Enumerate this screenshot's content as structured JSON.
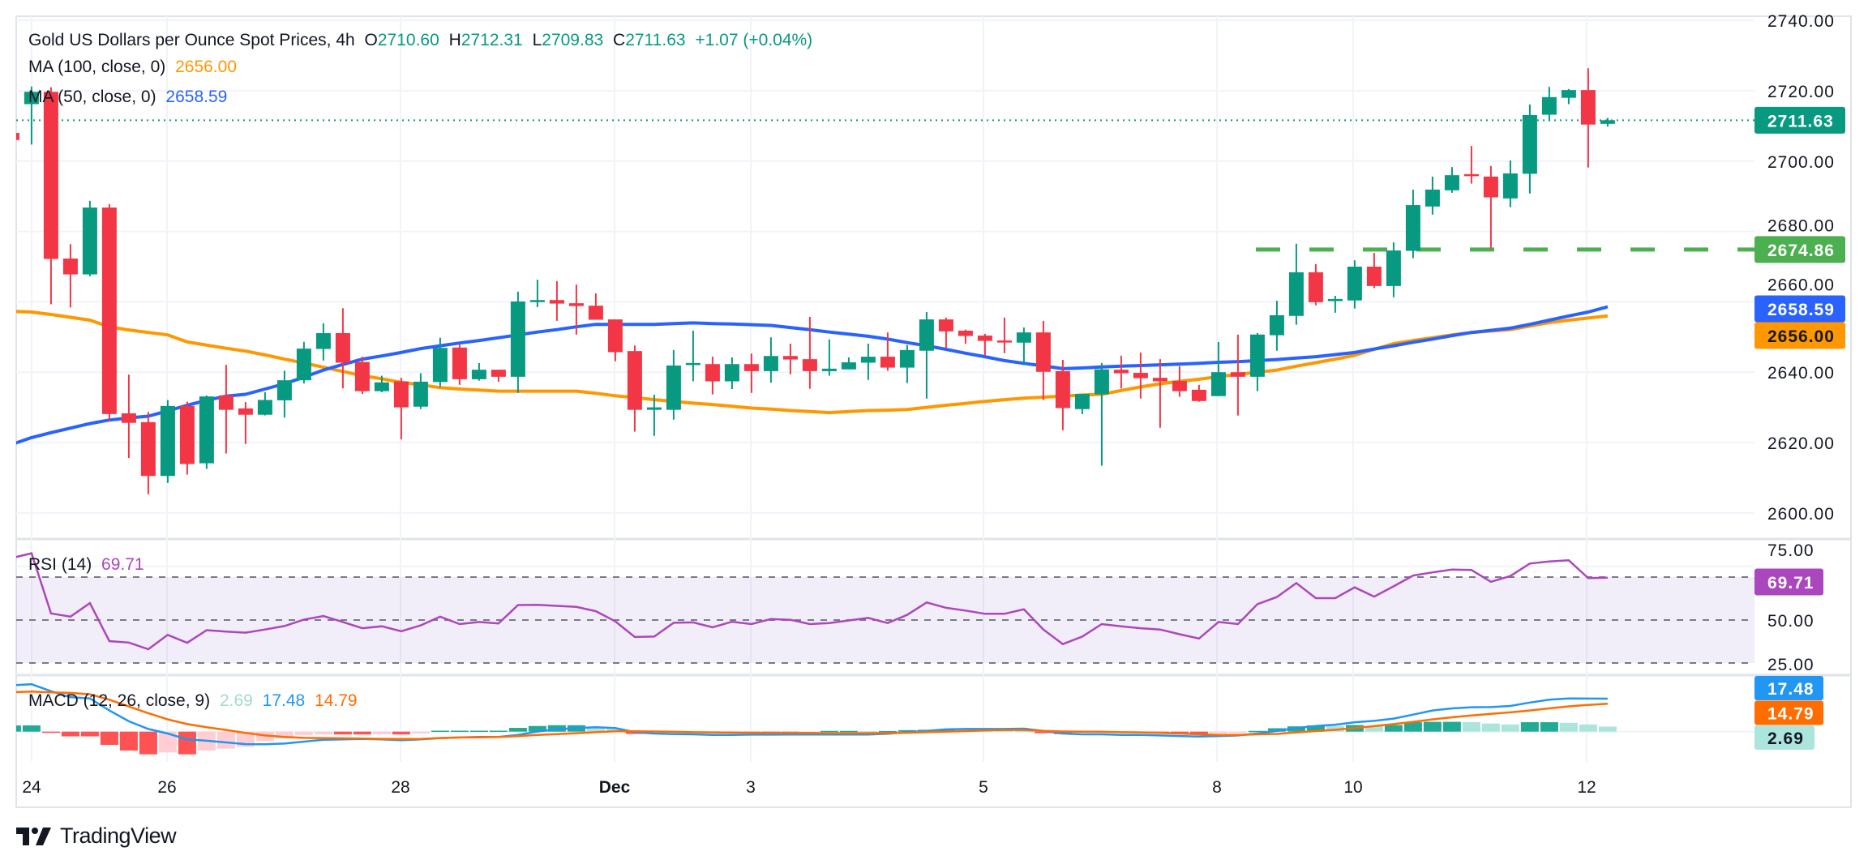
{
  "header": {
    "symbol_title": "Gold US Dollars per Ounce Spot Prices, 4h",
    "open_label": "O",
    "open": "2710.60",
    "high_label": "H",
    "high": "2712.31",
    "low_label": "L",
    "low": "2709.83",
    "close_label": "C",
    "close": "2711.63",
    "change": "+1.07 (+0.04%)",
    "ma100_label": "MA (100, close, 0)",
    "ma100_value": "2656.00",
    "ma50_label": "MA (50, close, 0)",
    "ma50_value": "2658.59",
    "rsi_label": "RSI (14)",
    "rsi_value": "69.71",
    "macd_label": "MACD (12, 26, close, 9)",
    "macd_hist_value": "2.69",
    "macd_value": "17.48",
    "macd_signal_value": "14.79"
  },
  "colors": {
    "up": "#089981",
    "down": "#f23645",
    "ma100": "#ff9800",
    "ma50": "#2962ff",
    "level": "#4caf50",
    "rsi": "#ab47bc",
    "rsi_band": "#7e57c2",
    "macd": "#2196f3",
    "signal": "#ff6d00",
    "hist_up_strong": "#22ab94",
    "hist_up_weak": "#ace5dc",
    "hist_down_strong": "#ff5252",
    "hist_down_weak": "#ffcdd2"
  },
  "price_axis": {
    "ticks": [
      "2740.00",
      "2720.00",
      "2700.00",
      "2680.00",
      "2660.00",
      "2640.00",
      "2620.00",
      "2600.00"
    ],
    "badges": [
      {
        "name": "last-price",
        "value": "2711.63",
        "color": "#089981",
        "text": "#ffffff"
      },
      {
        "name": "support-level",
        "value": "2674.86",
        "color": "#4caf50",
        "text": "#ffffff"
      },
      {
        "name": "ma50",
        "value": "2658.59",
        "color": "#2962ff",
        "text": "#ffffff"
      },
      {
        "name": "ma100",
        "value": "2656.00",
        "color": "#ff9800",
        "text": "#131722"
      }
    ]
  },
  "rsi_axis": {
    "ticks": [
      "75.00",
      "50.00",
      "25.00"
    ],
    "badge": {
      "value": "69.71",
      "color": "#ab47bc",
      "text": "#ffffff"
    }
  },
  "macd_axis": {
    "badges": [
      {
        "name": "macd",
        "value": "17.48",
        "color": "#2196f3",
        "text": "#ffffff"
      },
      {
        "name": "signal",
        "value": "14.79",
        "color": "#ff6d00",
        "text": "#ffffff"
      },
      {
        "name": "histogram",
        "value": "2.69",
        "color": "#ace5dc",
        "text": "#131722"
      }
    ]
  },
  "time_axis": {
    "labels": [
      "24",
      "26",
      "28",
      "Dec",
      "3",
      "5",
      "8",
      "10",
      "12"
    ]
  },
  "branding": {
    "logo_text": "TradingView"
  },
  "chart_data": {
    "type": "candlestick",
    "title": "Gold US Dollars per Ounce Spot Prices, 4h",
    "timeframe": "4h",
    "ylim": [
      2595,
      2745
    ],
    "grid": true,
    "candles_ohlc": [
      [
        2708,
        2709,
        2705,
        2706
      ],
      [
        2716.2,
        2721.2,
        2704.7,
        2719.7
      ],
      [
        2719.7,
        2721,
        2659.3,
        2672.2
      ],
      [
        2672.3,
        2676.4,
        2658.4,
        2667.8
      ],
      [
        2667.8,
        2688.7,
        2667.3,
        2686.8
      ],
      [
        2686.8,
        2687.8,
        2626.1,
        2628.1
      ],
      [
        2628.3,
        2639.3,
        2615.6,
        2625.6
      ],
      [
        2625.8,
        2628.7,
        2605.3,
        2610.5
      ],
      [
        2610.5,
        2632.1,
        2608.5,
        2630.4
      ],
      [
        2630.4,
        2631.6,
        2610.9,
        2613.9
      ],
      [
        2614.1,
        2633.4,
        2612.5,
        2633.1
      ],
      [
        2633.4,
        2642.1,
        2616.9,
        2629.3
      ],
      [
        2629.7,
        2631.5,
        2619.6,
        2627.9
      ],
      [
        2627.9,
        2634.3,
        2627.7,
        2632.1
      ],
      [
        2632.0,
        2640.4,
        2627.1,
        2637.7
      ],
      [
        2637.7,
        2648.6,
        2636.8,
        2646.7
      ],
      [
        2646.6,
        2653.9,
        2643.3,
        2651.1
      ],
      [
        2651.1,
        2658.2,
        2635.4,
        2642.7
      ],
      [
        2642.9,
        2644.4,
        2633.8,
        2634.6
      ],
      [
        2634.6,
        2639.0,
        2634.3,
        2637.1
      ],
      [
        2637.4,
        2638.4,
        2620.9,
        2630.0
      ],
      [
        2630.2,
        2639.7,
        2629.5,
        2637.3
      ],
      [
        2637.2,
        2649.8,
        2635.8,
        2646.9
      ],
      [
        2647.0,
        2648.1,
        2636.4,
        2638.0
      ],
      [
        2638.0,
        2642.6,
        2637.6,
        2640.7
      ],
      [
        2640.7,
        2640.7,
        2637.3,
        2638.7
      ],
      [
        2638.7,
        2662.9,
        2634.1,
        2660.1
      ],
      [
        2660.1,
        2666.3,
        2658.5,
        2660.5
      ],
      [
        2660.5,
        2665.9,
        2654.6,
        2659.5
      ],
      [
        2659.6,
        2664.9,
        2650.7,
        2658.8
      ],
      [
        2658.9,
        2662.4,
        2654.9,
        2654.9
      ],
      [
        2655.0,
        2655.0,
        2643.1,
        2645.7
      ],
      [
        2646.0,
        2647.6,
        2623.1,
        2629.3
      ],
      [
        2629.3,
        2633.6,
        2621.9,
        2630.0
      ],
      [
        2629.3,
        2646.3,
        2626.5,
        2641.9
      ],
      [
        2642.1,
        2651.8,
        2637.4,
        2642.6
      ],
      [
        2642.3,
        2644.4,
        2633.7,
        2637.4
      ],
      [
        2637.4,
        2644.2,
        2635.2,
        2642.3
      ],
      [
        2642.3,
        2645.3,
        2634.1,
        2640.3
      ],
      [
        2640.3,
        2649.9,
        2637.0,
        2644.6
      ],
      [
        2644.6,
        2648.1,
        2639.4,
        2643.6
      ],
      [
        2643.7,
        2655.7,
        2635.3,
        2640.3
      ],
      [
        2640.3,
        2649.3,
        2639.0,
        2641.0
      ],
      [
        2640.8,
        2644.2,
        2640.8,
        2642.8
      ],
      [
        2642.7,
        2648.1,
        2637.8,
        2644.4
      ],
      [
        2644.4,
        2651.3,
        2640.4,
        2641.3
      ],
      [
        2641.3,
        2647.7,
        2636.9,
        2646.3
      ],
      [
        2646.1,
        2657.1,
        2632.5,
        2655.0
      ],
      [
        2655.0,
        2655.5,
        2646.8,
        2651.6
      ],
      [
        2651.8,
        2652.1,
        2648.1,
        2650.3
      ],
      [
        2650.4,
        2650.9,
        2644.7,
        2648.9
      ],
      [
        2649.0,
        2655.5,
        2645.4,
        2648.6
      ],
      [
        2648.4,
        2652.7,
        2642.0,
        2651.3
      ],
      [
        2651.3,
        2654.6,
        2632.1,
        2640.1
      ],
      [
        2640.3,
        2643.5,
        2623.5,
        2629.8
      ],
      [
        2629.5,
        2633.8,
        2628.1,
        2633.8
      ],
      [
        2633.7,
        2642.6,
        2613.4,
        2640.8
      ],
      [
        2640.7,
        2644.7,
        2635.4,
        2639.7
      ],
      [
        2639.8,
        2645.6,
        2632.5,
        2638.3
      ],
      [
        2638.4,
        2643.7,
        2624.2,
        2637.4
      ],
      [
        2637.5,
        2641.7,
        2633.0,
        2634.6
      ],
      [
        2635.0,
        2636.4,
        2631.6,
        2631.8
      ],
      [
        2633.2,
        2648.6,
        2633.2,
        2640.0
      ],
      [
        2640.0,
        2650.7,
        2627.7,
        2638.7
      ],
      [
        2638.7,
        2651.1,
        2634.6,
        2650.7
      ],
      [
        2650.5,
        2660.3,
        2646.1,
        2656.2
      ],
      [
        2656.0,
        2676.5,
        2653.5,
        2668.4
      ],
      [
        2668.4,
        2670.7,
        2659.0,
        2659.9
      ],
      [
        2660.4,
        2661.7,
        2656.9,
        2660.8
      ],
      [
        2660.4,
        2671.8,
        2658.1,
        2670.0
      ],
      [
        2670.0,
        2673.9,
        2663.9,
        2664.5
      ],
      [
        2664.5,
        2676.9,
        2661.3,
        2674.6
      ],
      [
        2674.5,
        2691.9,
        2672.4,
        2687.5
      ],
      [
        2687.1,
        2695.6,
        2684.8,
        2691.9
      ],
      [
        2691.7,
        2698.3,
        2691.0,
        2696.0
      ],
      [
        2696.3,
        2704.3,
        2693.6,
        2695.9
      ],
      [
        2695.6,
        2698.6,
        2675.1,
        2689.7
      ],
      [
        2689.4,
        2700.2,
        2686.9,
        2696.5
      ],
      [
        2696.4,
        2716.1,
        2690.8,
        2713.1
      ],
      [
        2713.2,
        2721.1,
        2711.3,
        2718.2
      ],
      [
        2718.0,
        2720.5,
        2716.2,
        2720.2
      ],
      [
        2720.2,
        2726.4,
        2698.2,
        2710.4
      ],
      [
        2710.6,
        2712.31,
        2709.83,
        2711.63
      ]
    ],
    "ma100": [
      2657.3,
      2657.1,
      2656.4,
      2655.6,
      2654.8,
      2652.9,
      2652,
      2651.3,
      2650.6,
      2648.6,
      2647.7,
      2646.8,
      2646,
      2644.9,
      2643.7,
      2642.6,
      2641.4,
      2640.2,
      2639,
      2638.1,
      2637.1,
      2636.4,
      2635.6,
      2635.2,
      2634.9,
      2634.6,
      2634.6,
      2634.6,
      2634.6,
      2634.6,
      2634,
      2633.3,
      2632.8,
      2632.2,
      2631.7,
      2631.2,
      2630.8,
      2630.3,
      2629.8,
      2629.5,
      2629.1,
      2628.8,
      2628.5,
      2628.8,
      2629.1,
      2629.2,
      2629.4,
      2630,
      2630.6,
      2631.1,
      2631.7,
      2632.2,
      2632.6,
      2632.9,
      2633.2,
      2633.5,
      2633.7,
      2634.8,
      2635.8,
      2636.7,
      2637.4,
      2638,
      2638.7,
      2639.4,
      2640,
      2640.6,
      2641.7,
      2642.7,
      2643.7,
      2644.8,
      2646.5,
      2648.1,
      2649,
      2649.8,
      2650.6,
      2651.3,
      2651.7,
      2652.1,
      2653.1,
      2654.1,
      2654.8,
      2655.4,
      2656.0
    ],
    "ma50": [
      2619.5,
      2621.4,
      2622.8,
      2624.1,
      2625.4,
      2626.4,
      2627,
      2627.5,
      2629,
      2630.6,
      2632,
      2633.2,
      2633.7,
      2635.2,
      2636.7,
      2638.6,
      2640.6,
      2642.2,
      2643.7,
      2644.6,
      2645.6,
      2646.7,
      2647.5,
      2648.3,
      2649,
      2649.8,
      2650.6,
      2651.4,
      2652.1,
      2652.9,
      2653.6,
      2653.6,
      2653.6,
      2653.6,
      2653.8,
      2654,
      2653.8,
      2653.7,
      2653.5,
      2653.3,
      2652.7,
      2652.1,
      2651.4,
      2650.8,
      2650.2,
      2649.4,
      2648.4,
      2647.5,
      2646.5,
      2645.4,
      2644.4,
      2643.3,
      2642.5,
      2641.8,
      2641,
      2641.2,
      2641.5,
      2641.7,
      2641.9,
      2642.1,
      2642.3,
      2642.5,
      2642.8,
      2643,
      2643.3,
      2643.6,
      2644,
      2644.4,
      2645,
      2645.6,
      2646.6,
      2647.5,
      2648.5,
      2649.4,
      2650.4,
      2651.3,
      2651.9,
      2652.5,
      2653.6,
      2654.8,
      2656,
      2657.1,
      2658.59
    ],
    "support_level": 2674.86,
    "last_price": 2711.63,
    "rsi": {
      "ylim": [
        20,
        85
      ],
      "upper_band": 70,
      "middle": 50,
      "lower_band": 30,
      "values": [
        78.9,
        81.1,
        53.1,
        51.6,
        57.9,
        40.2,
        39.5,
        36.4,
        43.1,
        39.4,
        45.3,
        44.6,
        44.1,
        45.6,
        47.2,
        50.2,
        51.9,
        49.1,
        46.2,
        47.1,
        44.8,
        47.5,
        51.6,
        48.1,
        49.1,
        48.4,
        57,
        57.1,
        56.6,
        56.1,
        54.1,
        49.4,
        42.1,
        42.3,
        48.7,
        48.9,
        46.6,
        49.2,
        48.1,
        50.5,
        50.1,
        48.1,
        48.6,
        49.8,
        51.0,
        48.6,
        52.4,
        58.2,
        55.7,
        54.4,
        52.9,
        52.9,
        55.0,
        45.6,
        38.8,
        42.3,
        48.1,
        47.1,
        46.2,
        45.6,
        43.4,
        41.4,
        49.1,
        48.1,
        57.4,
        60.7,
        67.2,
        60.2,
        60.2,
        65.2,
        60.9,
        65.7,
        70.7,
        72.2,
        73.5,
        73.3,
        67.8,
        70.5,
        76.3,
        77.3,
        77.8,
        69.5,
        69.71
      ]
    },
    "macd": {
      "macd": [
        24.5,
        25.1,
        21.4,
        18.3,
        17.6,
        11.2,
        5.5,
        1.4,
        -1,
        -4.1,
        -4.8,
        -5.7,
        -6.6,
        -6.7,
        -6.3,
        -5.3,
        -4.3,
        -4.1,
        -3.8,
        -4.1,
        -4.5,
        -4.1,
        -3.4,
        -3.1,
        -2.8,
        -2.8,
        -1.7,
        0.1,
        1.2,
        1.9,
        2.3,
        1.9,
        -0.3,
        -1,
        -1.3,
        -1.4,
        -1.7,
        -1.7,
        -1.6,
        -1.6,
        -1.5,
        -1.5,
        -1.5,
        -1.5,
        -1.5,
        -1.1,
        -0.3,
        0.4,
        1.2,
        1.4,
        1.4,
        1.4,
        1.6,
        0.4,
        -1,
        -1.4,
        -1.4,
        -1.7,
        -1.7,
        -2,
        -2.3,
        -2.6,
        -2.3,
        -2,
        -1,
        0.4,
        1.9,
        3.0,
        3.7,
        5.0,
        5.7,
        6.9,
        9.0,
        11.2,
        12.3,
        12.9,
        13.0,
        13.6,
        15.4,
        16.9,
        17.6,
        17.5,
        17.48
      ],
      "signal": [
        20.9,
        21.2,
        20.8,
        20.5,
        19.8,
        16.9,
        13.3,
        9.8,
        6.5,
        4.0,
        2.3,
        0.9,
        -0.7,
        -2,
        -2.8,
        -3.3,
        -3.4,
        -3.5,
        -3.7,
        -3.8,
        -3.9,
        -3.8,
        -3.4,
        -3.1,
        -3.0,
        -2.8,
        -2.4,
        -1.7,
        -1.3,
        -0.8,
        -0.3,
        0.2,
        0.2,
        0.1,
        -0.1,
        -0.3,
        -0.4,
        -0.5,
        -0.6,
        -0.6,
        -0.7,
        -0.7,
        -0.8,
        -0.8,
        -0.8,
        -0.7,
        -0.6,
        -0.3,
        0,
        0.3,
        0.6,
        0.9,
        0.9,
        0.4,
        0.1,
        0,
        -0.1,
        -0.3,
        -0.4,
        -0.7,
        -1,
        -1.4,
        -1.7,
        -1.7,
        -1.4,
        -1.2,
        -0.4,
        0.3,
        1.0,
        1.9,
        2.9,
        4.0,
        5.2,
        6.5,
        7.6,
        8.6,
        9.4,
        10.2,
        11.2,
        12.3,
        13.4,
        14.1,
        14.79
      ],
      "histogram": [
        3.3,
        3.3,
        -0.3,
        -2.5,
        -2.5,
        -7,
        -10,
        -12,
        -11,
        -12,
        -10,
        -9,
        -8,
        -5,
        -3.5,
        -1.8,
        -1.5,
        -1.5,
        -1.5,
        -1.4,
        -1.5,
        -1.0,
        0.5,
        0.5,
        0.5,
        0.5,
        2,
        3,
        3.4,
        3.4,
        2.4,
        1.5,
        -1.2,
        -0.6,
        -0.5,
        -0.5,
        -0.4,
        -0.4,
        -0.5,
        -0.6,
        -0.8,
        -0.6,
        0.4,
        0.4,
        0.2,
        0.3,
        0.8,
        1.0,
        1.0,
        0.8,
        0.7,
        0.6,
        0.4,
        -0.8,
        -1.3,
        -0.6,
        -0.5,
        -0.4,
        -0.4,
        -0.6,
        -1.2,
        -1.4,
        -0.9,
        -0.6,
        0.4,
        1.8,
        2.8,
        3.3,
        3.0,
        3.5,
        3.0,
        3.5,
        5.0,
        5.2,
        5.2,
        5.1,
        4.3,
        3.8,
        5.0,
        5.0,
        4.7,
        3.8,
        2.69
      ]
    }
  }
}
